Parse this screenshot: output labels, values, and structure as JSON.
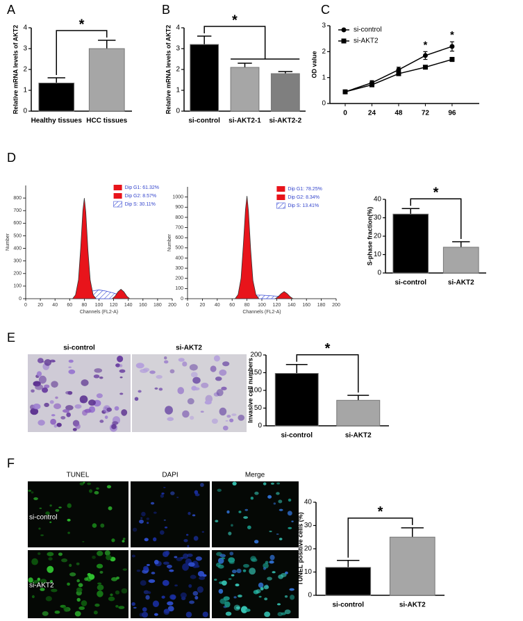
{
  "panel_labels": [
    "A",
    "B",
    "C",
    "D",
    "E",
    "F"
  ],
  "micrographs": [
    {
      "columns": [
        "si-control",
        "si-AKT2"
      ]
    },
    {
      "columns": [
        "TUNEL",
        "DAPI",
        "Merge"
      ],
      "rows": [
        "si-control",
        "si-AKT2"
      ]
    }
  ],
  "chart_data": [
    {
      "type": "bar",
      "ylabel": "Relative mRNA levels of  AKT2",
      "categories": [
        "Healthy tissues",
        "HCC tissues"
      ],
      "values": [
        1.35,
        3.0
      ],
      "errors": [
        0.25,
        0.4
      ],
      "colors": [
        "#000000",
        "#a6a6a6"
      ],
      "ylim": [
        0,
        4
      ],
      "yticks": [
        0,
        1,
        2,
        3,
        4
      ],
      "significance": "*"
    },
    {
      "type": "bar",
      "ylabel": "Relative mRNA levels of  AKT2",
      "categories": [
        "si-control",
        "si-AKT2-1",
        "si-AKT2-2"
      ],
      "values": [
        3.2,
        2.1,
        1.8
      ],
      "errors": [
        0.4,
        0.2,
        0.1
      ],
      "colors": [
        "#000000",
        "#a6a6a6",
        "#7f7f7f"
      ],
      "ylim": [
        0,
        4
      ],
      "yticks": [
        0,
        1,
        2,
        3,
        4
      ],
      "significance": "*"
    },
    {
      "type": "line",
      "ylabel": "OD value",
      "categories": [
        "0",
        "24",
        "48",
        "72",
        "96"
      ],
      "series": [
        {
          "name": "si-control",
          "color": "#000000",
          "marker": "circle",
          "values": [
            0.45,
            0.8,
            1.3,
            1.85,
            2.2
          ],
          "errors": [
            0.03,
            0.08,
            0.1,
            0.15,
            0.18
          ]
        },
        {
          "name": "si-AKT2",
          "color": "#000000",
          "marker": "square",
          "values": [
            0.45,
            0.72,
            1.15,
            1.4,
            1.7
          ],
          "errors": [
            0.03,
            0.05,
            0.06,
            0.06,
            0.08
          ]
        }
      ],
      "ylim": [
        0,
        3
      ],
      "yticks": [
        0,
        1,
        2,
        3
      ],
      "legend": "upper-left",
      "annotations": [
        {
          "category": "72",
          "text": "*"
        },
        {
          "category": "96",
          "text": "*"
        }
      ]
    },
    {
      "type": "area",
      "xlabel": "Channels (FL2-A)",
      "ylabel": "Number",
      "xlim": [
        0,
        200
      ],
      "xticks": [
        0,
        20,
        40,
        60,
        80,
        100,
        120,
        140,
        160,
        180,
        200
      ],
      "ylim": [
        0,
        900
      ],
      "yticks": [
        0,
        100,
        200,
        300,
        400,
        500,
        600,
        700,
        800
      ],
      "legend": "upper-right",
      "series": [
        {
          "name": "Dip G1: 61.32%",
          "color": "#e8141b",
          "x": [
            64,
            68,
            72,
            75,
            78,
            80,
            82,
            85,
            88,
            92,
            96
          ],
          "values": [
            0,
            30,
            150,
            400,
            700,
            800,
            690,
            380,
            150,
            30,
            0
          ]
        },
        {
          "name": "Dip G2: 8.57%",
          "color": "#e8141b",
          "x": [
            118,
            122,
            126,
            130,
            134,
            138,
            142
          ],
          "values": [
            0,
            20,
            55,
            75,
            55,
            20,
            0
          ]
        },
        {
          "name": "Dip S: 30.11%",
          "color": "#3d4fd6",
          "pattern": "hatch",
          "x": [
            72,
            80,
            90,
            100,
            110,
            120,
            128,
            134
          ],
          "values": [
            0,
            55,
            60,
            70,
            60,
            45,
            30,
            0
          ]
        }
      ]
    },
    {
      "type": "area",
      "xlabel": "Channels (FL2-A)",
      "ylabel": "Number",
      "xlim": [
        0,
        200
      ],
      "xticks": [
        0,
        20,
        40,
        60,
        80,
        100,
        120,
        140,
        160,
        180,
        200
      ],
      "ylim": [
        0,
        1100
      ],
      "yticks": [
        0,
        100,
        200,
        300,
        400,
        500,
        600,
        700,
        800,
        900,
        1000
      ],
      "legend": "upper-right",
      "series": [
        {
          "name": "Dip G1: 78.25%",
          "color": "#e8141b",
          "x": [
            64,
            68,
            72,
            75,
            78,
            80,
            82,
            85,
            88,
            92,
            96
          ],
          "values": [
            0,
            40,
            200,
            520,
            880,
            1010,
            860,
            480,
            180,
            40,
            0
          ]
        },
        {
          "name": "Dip G2: 8.34%",
          "color": "#e8141b",
          "x": [
            118,
            122,
            126,
            130,
            134,
            138,
            142
          ],
          "values": [
            0,
            20,
            50,
            70,
            50,
            20,
            0
          ]
        },
        {
          "name": "Dip S: 13.41%",
          "color": "#3d4fd6",
          "pattern": "hatch",
          "x": [
            72,
            80,
            90,
            100,
            110,
            120,
            128,
            134
          ],
          "values": [
            0,
            35,
            35,
            35,
            30,
            25,
            20,
            0
          ]
        }
      ]
    },
    {
      "type": "bar",
      "ylabel": "S-phase fraction(%)",
      "categories": [
        "si-control",
        "si-AKT2"
      ],
      "values": [
        32,
        14
      ],
      "errors": [
        3,
        3
      ],
      "colors": [
        "#000000",
        "#a6a6a6"
      ],
      "ylim": [
        0,
        40
      ],
      "yticks": [
        0,
        10,
        20,
        30,
        40
      ],
      "significance": "*"
    },
    {
      "type": "bar",
      "ylabel": "Invasive cell numbers",
      "categories": [
        "si-control",
        "si-AKT2"
      ],
      "values": [
        148,
        72
      ],
      "errors": [
        25,
        14
      ],
      "colors": [
        "#000000",
        "#a6a6a6"
      ],
      "ylim": [
        0,
        200
      ],
      "yticks": [
        0,
        50,
        100,
        150,
        200
      ],
      "significance": "*"
    },
    {
      "type": "bar",
      "ylabel": "TUNEL positive cells (%)",
      "categories": [
        "si-control",
        "si-AKT2"
      ],
      "values": [
        12,
        25
      ],
      "errors": [
        3,
        4
      ],
      "colors": [
        "#000000",
        "#a6a6a6"
      ],
      "ylim": [
        0,
        40
      ],
      "yticks": [
        0,
        10,
        20,
        30,
        40
      ],
      "significance": "*"
    }
  ]
}
